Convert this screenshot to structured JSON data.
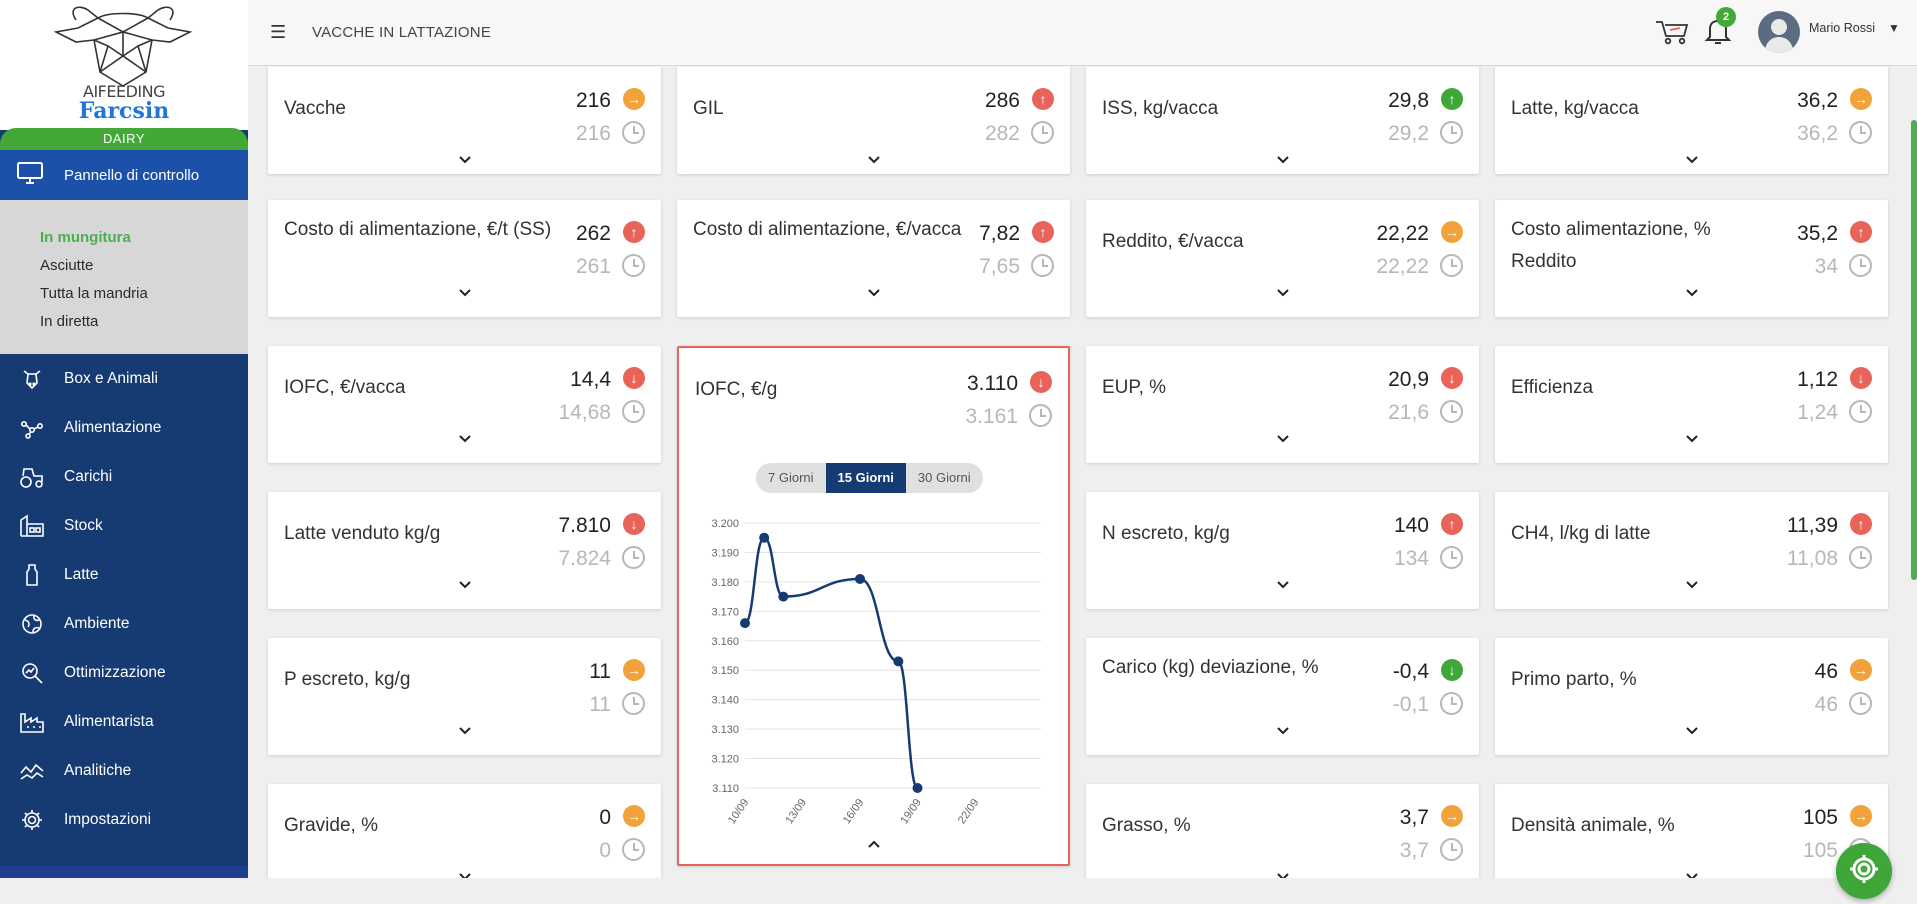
{
  "brand": {
    "ai_text": "AIFEEDING",
    "name": "Farcsin",
    "product": "DAIRY"
  },
  "nav": {
    "active_label": "Pannello di controllo",
    "sub_items": [
      {
        "label": "In mungitura",
        "active": true
      },
      {
        "label": "Asciutte"
      },
      {
        "label": "Tutta la mandria"
      },
      {
        "label": "In diretta"
      }
    ],
    "items": [
      {
        "label": "Box e Animali",
        "icon": "cow-icon"
      },
      {
        "label": "Alimentazione",
        "icon": "network-icon"
      },
      {
        "label": "Carichi",
        "icon": "tractor-icon"
      },
      {
        "label": "Stock",
        "icon": "warehouse-icon"
      },
      {
        "label": "Latte",
        "icon": "milk-bottle-icon"
      },
      {
        "label": "Ambiente",
        "icon": "globe-icon"
      },
      {
        "label": "Ottimizzazione",
        "icon": "search-chart-icon"
      },
      {
        "label": "Alimentarista",
        "icon": "factory-icon"
      },
      {
        "label": "Analitiche",
        "icon": "analytics-icon"
      },
      {
        "label": "Impostazioni",
        "icon": "gear-icon"
      }
    ]
  },
  "header": {
    "title": "VACCHE IN LATTAZIONE",
    "notification_count": "2",
    "user_name": "Mario Rossi"
  },
  "colors": {
    "sidebar": "#163a72",
    "active_nav": "#1b51a8",
    "green": "#43a936",
    "red": "#e8645a",
    "orange": "#f2a23a"
  },
  "cards": [
    {
      "label": "Vacche",
      "value": "216",
      "prev": "216",
      "dir": "right"
    },
    {
      "label": "GIL",
      "value": "286",
      "prev": "282",
      "dir": "up"
    },
    {
      "label": "ISS, kg/vacca",
      "value": "29,8",
      "prev": "29,2",
      "dir": "up-green"
    },
    {
      "label": "Latte, kg/vacca",
      "value": "36,2",
      "prev": "36,2",
      "dir": "right"
    },
    {
      "label": "Costo di alimentazione, €/t (SS)",
      "value": "262",
      "prev": "261",
      "dir": "up"
    },
    {
      "label": "Costo di alimentazione, €/vacca",
      "value": "7,82",
      "prev": "7,65",
      "dir": "up"
    },
    {
      "label": "Reddito, €/vacca",
      "value": "22,22",
      "prev": "22,22",
      "dir": "right"
    },
    {
      "label": "Costo alimentazione, % Reddito",
      "value": "35,2",
      "prev": "34",
      "dir": "up"
    },
    {
      "label": "IOFC, €/vacca",
      "value": "14,4",
      "prev": "14,68",
      "dir": "down"
    },
    {
      "label": "IOFC, €/g",
      "value": "3.110",
      "prev": "3.161",
      "dir": "down"
    },
    {
      "label": "EUP, %",
      "value": "20,9",
      "prev": "21,6",
      "dir": "down"
    },
    {
      "label": "Efficienza",
      "value": "1,12",
      "prev": "1,24",
      "dir": "down"
    },
    {
      "label": "Latte venduto kg/g",
      "value": "7.810",
      "prev": "7.824",
      "dir": "down"
    },
    {
      "label": "N escreto, kg/g",
      "value": "140",
      "prev": "134",
      "dir": "up"
    },
    {
      "label": "CH4, l/kg di latte",
      "value": "11,39",
      "prev": "11,08",
      "dir": "up"
    },
    {
      "label": "P escreto, kg/g",
      "value": "11",
      "prev": "11",
      "dir": "right"
    },
    {
      "label": "Carico (kg) deviazione, %",
      "value": "-0,4",
      "prev": "-0,1",
      "dir": "down-green"
    },
    {
      "label": "Primo parto, %",
      "value": "46",
      "prev": "46",
      "dir": "right"
    },
    {
      "label": "Gravide, %",
      "value": "0",
      "prev": "0",
      "dir": "right"
    },
    {
      "label": "Grasso, %",
      "value": "3,7",
      "prev": "3,7",
      "dir": "right"
    },
    {
      "label": "Densità animale, %",
      "value": "105",
      "prev": "105",
      "dir": "right"
    }
  ],
  "range_buttons": [
    {
      "label": "7 Giorni"
    },
    {
      "label": "15 Giorni",
      "selected": true
    },
    {
      "label": "30 Giorni"
    }
  ],
  "chart_data": {
    "type": "line",
    "title": "",
    "xlabel": "",
    "ylabel": "",
    "x_ticks": [
      "10/09",
      "13/09",
      "16/09",
      "19/09",
      "22/09"
    ],
    "y_ticks": [
      "3.200",
      "3.190",
      "3.180",
      "3.170",
      "3.160",
      "3.150",
      "3.140",
      "3.130",
      "3.120",
      "3.110"
    ],
    "ylim": [
      3.11,
      3.2
    ],
    "xlim_days": [
      "10/09",
      "22/09"
    ],
    "grid": true,
    "series": [
      {
        "points": [
          {
            "x": "10/09",
            "y": 3.166
          },
          {
            "x": "11/09",
            "y": 3.195
          },
          {
            "x": "12/09",
            "y": 3.175
          },
          {
            "x": "16/09",
            "y": 3.181
          },
          {
            "x": "18/09",
            "y": 3.153
          },
          {
            "x": "19/09",
            "y": 3.11
          }
        ]
      }
    ]
  }
}
